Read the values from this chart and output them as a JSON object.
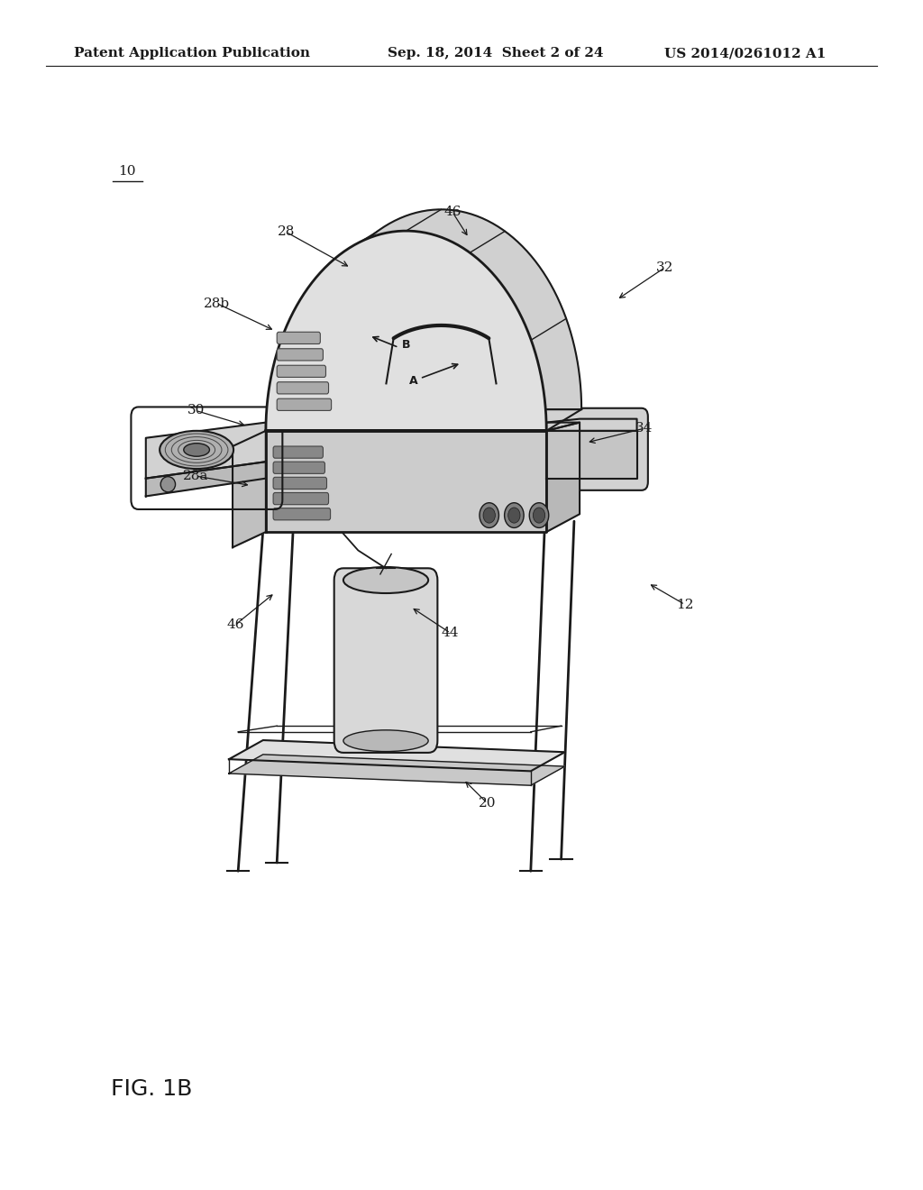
{
  "background_color": "#ffffff",
  "header_left": "Patent Application Publication",
  "header_center": "Sep. 18, 2014  Sheet 2 of 24",
  "header_right": "US 2014/0261012 A1",
  "header_fontsize": 11,
  "fig_label": "FIG. 1B",
  "fig_label_fontsize": 18,
  "color_main": "#1a1a1a",
  "color_mid": "#555555"
}
